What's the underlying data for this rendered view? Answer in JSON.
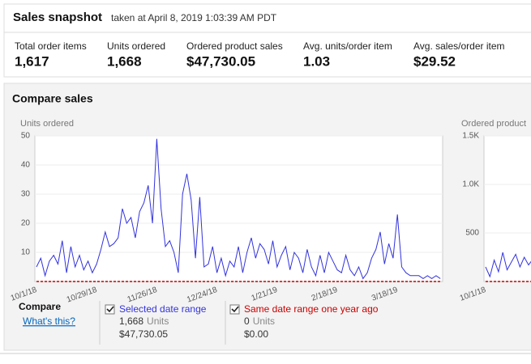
{
  "header": {
    "title": "Sales snapshot",
    "timestamp": "taken at April 8, 2019 1:03:39 AM PDT"
  },
  "metrics": [
    {
      "label": "Total order items",
      "value": "1,617"
    },
    {
      "label": "Units ordered",
      "value": "1,668"
    },
    {
      "label": "Ordered product sales",
      "value": "$47,730.05"
    },
    {
      "label": "Avg. units/order item",
      "value": "1.03"
    },
    {
      "label": "Avg. sales/order item",
      "value": "$29.52"
    }
  ],
  "compare_sales": {
    "title": "Compare sales"
  },
  "chart_data": [
    {
      "type": "line",
      "title": "Units ordered",
      "categories": [
        "10/1/18",
        null,
        null,
        null,
        null,
        null,
        null,
        null,
        null,
        null,
        null,
        null,
        null,
        null,
        "10/29/18",
        null,
        null,
        null,
        null,
        null,
        null,
        null,
        null,
        null,
        null,
        null,
        null,
        null,
        "11/26/18",
        null,
        null,
        null,
        null,
        null,
        null,
        null,
        null,
        null,
        null,
        null,
        null,
        null,
        "12/24/18",
        null,
        null,
        null,
        null,
        null,
        null,
        null,
        null,
        null,
        null,
        null,
        null,
        null,
        "1/21/19",
        null,
        null,
        null,
        null,
        null,
        null,
        null,
        null,
        null,
        null,
        null,
        null,
        null,
        "2/18/19",
        null,
        null,
        null,
        null,
        null,
        null,
        null,
        null,
        null,
        null,
        null,
        null,
        null,
        "3/18/19",
        null,
        null,
        null,
        null,
        null,
        null,
        null,
        null,
        null,
        null
      ],
      "series": [
        {
          "name": "Selected date range",
          "color": "#3333dd",
          "values": [
            5,
            8,
            2,
            7,
            9,
            6,
            14,
            3,
            12,
            5,
            9,
            4,
            7,
            3,
            6,
            11,
            17,
            12,
            13,
            15,
            25,
            20,
            22,
            15,
            24,
            27,
            33,
            20,
            49,
            25,
            12,
            14,
            10,
            3,
            30,
            37,
            28,
            8,
            29,
            5,
            6,
            12,
            3,
            8,
            2,
            7,
            5,
            12,
            3,
            10,
            15,
            8,
            13,
            11,
            6,
            14,
            5,
            9,
            12,
            4,
            10,
            8,
            3,
            11,
            5,
            2,
            9,
            3,
            10,
            7,
            4,
            3,
            9,
            4,
            2,
            5,
            1,
            3,
            8,
            11,
            17,
            6,
            13,
            8,
            23,
            5,
            3,
            2,
            2,
            2,
            1,
            2,
            1,
            2,
            1
          ]
        },
        {
          "name": "Same date range one year ago",
          "color": "#cc0000",
          "values": [
            0,
            0,
            0,
            0,
            0,
            0,
            0,
            0,
            0,
            0,
            0,
            0,
            0,
            0,
            0,
            0,
            0,
            0,
            0,
            0,
            0,
            0,
            0,
            0,
            0,
            0,
            0,
            0,
            0,
            0,
            0,
            0,
            0,
            0,
            0,
            0,
            0,
            0,
            0,
            0,
            0,
            0,
            0,
            0,
            0,
            0,
            0,
            0,
            0,
            0,
            0,
            0,
            0,
            0,
            0,
            0,
            0,
            0,
            0,
            0,
            0,
            0,
            0,
            0,
            0,
            0,
            0,
            0,
            0,
            0,
            0,
            0,
            0,
            0,
            0,
            0,
            0,
            0,
            0,
            0,
            0,
            0,
            0,
            0,
            0,
            0,
            0,
            0,
            0,
            0,
            0,
            0,
            0,
            0,
            0
          ]
        }
      ],
      "ylim": [
        0,
        50
      ],
      "yticks": [
        10,
        20,
        30,
        40,
        50
      ],
      "grid": true
    },
    {
      "type": "line",
      "title": "Ordered product",
      "categories": [
        "10/1/18",
        null,
        null,
        null,
        null,
        null,
        null,
        null,
        null,
        null,
        null,
        null
      ],
      "series": [
        {
          "name": "Selected date range",
          "color": "#3333dd",
          "values": [
            150,
            50,
            220,
            100,
            300,
            120,
            200,
            280,
            150,
            250,
            170,
            230
          ]
        },
        {
          "name": "Same date range one year ago",
          "color": "#cc0000",
          "values": [
            0,
            0,
            0,
            0,
            0,
            0,
            0,
            0,
            0,
            0,
            0,
            0
          ]
        }
      ],
      "ylim": [
        0,
        1500
      ],
      "yticks": [
        500,
        {
          "value": 1000,
          "label": "1.0K"
        },
        {
          "value": 1500,
          "label": "1.5K"
        }
      ],
      "grid": true
    }
  ],
  "legend": {
    "title": "Compare",
    "link": "What's this?",
    "items": [
      {
        "units": "1,668",
        "units_label": "Units",
        "sales": "$47,730.05"
      },
      {
        "units": "0",
        "units_label": "Units",
        "sales": "$0.00"
      }
    ]
  }
}
